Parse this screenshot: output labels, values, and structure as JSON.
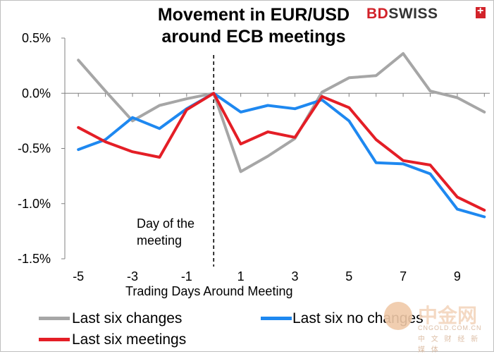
{
  "chart_data": {
    "type": "line",
    "title": "Movement in EUR/USD around ECB meetings",
    "xlabel": "Trading Days Around Meeting",
    "ylabel": "",
    "x": [
      -5,
      -4,
      -3,
      -2,
      -1,
      0,
      1,
      2,
      3,
      4,
      5,
      6,
      7,
      8,
      9,
      10
    ],
    "x_ticks": [
      -5,
      -3,
      -1,
      1,
      3,
      5,
      7,
      9
    ],
    "x_tick_labels": [
      "-5",
      "-3",
      "-1",
      "1",
      "3",
      "5",
      "7",
      "9"
    ],
    "xlim": [
      -5.5,
      10.2
    ],
    "ylim": [
      -1.5,
      0.5
    ],
    "y_ticks": [
      0.5,
      0.0,
      -0.5,
      -1.0,
      -1.5
    ],
    "y_tick_labels": [
      "0.5%",
      "0.0%",
      "-0.5%",
      "-1.0%",
      "-1.5%"
    ],
    "grid": false,
    "legend_position": "bottom",
    "series": [
      {
        "name": "Last six changes",
        "color": "#a6a6a6",
        "values": [
          0.3,
          0.02,
          -0.25,
          -0.11,
          -0.05,
          0.0,
          -0.71,
          -0.57,
          -0.41,
          0.01,
          0.14,
          0.16,
          0.36,
          0.02,
          -0.04,
          -0.17
        ]
      },
      {
        "name": "Last six no changes",
        "color": "#1e88f0",
        "values": [
          -0.51,
          -0.42,
          -0.22,
          -0.32,
          -0.14,
          0.0,
          -0.17,
          -0.11,
          -0.14,
          -0.06,
          -0.25,
          -0.63,
          -0.64,
          -0.73,
          -1.05,
          -1.12
        ]
      },
      {
        "name": "Last six meetings",
        "color": "#e41e26",
        "values": [
          -0.31,
          -0.44,
          -0.53,
          -0.58,
          -0.15,
          0.0,
          -0.46,
          -0.35,
          -0.4,
          -0.03,
          -0.13,
          -0.42,
          -0.61,
          -0.65,
          -0.94,
          -1.06
        ]
      }
    ],
    "annotation": {
      "text_line1": "Day of the",
      "text_line2": "meeting",
      "x": 0
    }
  },
  "brand": {
    "part1": "BD",
    "part2": "SWISS"
  },
  "watermark": {
    "main": "中金网",
    "sub": "CNGOLD.COM.CN",
    "sub2": "中 文 财 经 新 媒 体"
  }
}
